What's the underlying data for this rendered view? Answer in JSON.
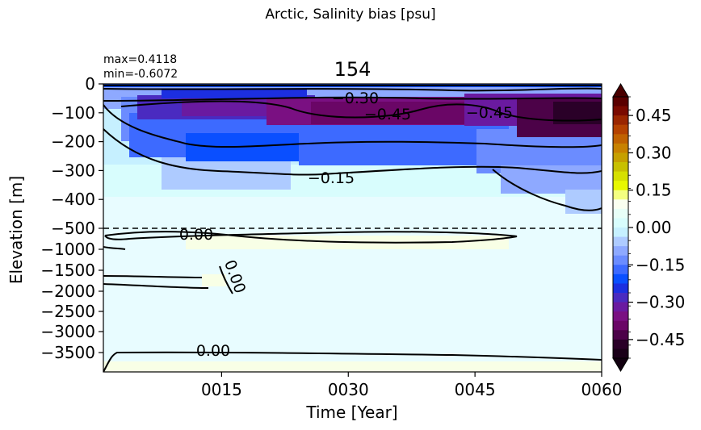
{
  "figure": {
    "suptitle": "Arctic, Salinity bias [psu]",
    "panel_title": "154",
    "stat_max": "max=0.4118",
    "stat_min": "min=-0.6072"
  },
  "chart_data": {
    "type": "heatmap",
    "title": "154",
    "xlabel": "Time [Year]",
    "ylabel": "Elevation [m]",
    "x_range": [
      1,
      60
    ],
    "x_ticks": [
      "0015",
      "0030",
      "0045",
      "0060"
    ],
    "x_tick_values": [
      15,
      30,
      45,
      60
    ],
    "y_ticks_upper": [
      "0",
      "−100",
      "−200",
      "−300",
      "−400",
      "−500"
    ],
    "y_ticks_lower": [
      "−1000",
      "−1500",
      "−2000",
      "−2500",
      "−3000",
      "−3500"
    ],
    "y_split_depth": -500,
    "colorbar": {
      "ticks": [
        "0.45",
        "0.30",
        "0.15",
        "0.00",
        "−0.15",
        "−0.30",
        "−0.45"
      ],
      "range": [
        -0.525,
        0.525
      ],
      "extend": "both",
      "colors": [
        "#e8fcff",
        "#d8fdfd",
        "#c6f0ff",
        "#aecbff",
        "#8ea9ff",
        "#6b8cff",
        "#3d6aff",
        "#0a4fff",
        "#1c2fe0",
        "#4a2ac0",
        "#6a1aa0",
        "#7a1082",
        "#6a0666",
        "#4c0248",
        "#2a0028"
      ]
    },
    "contour_levels": [
      "0.00",
      "−0.15",
      "−0.30",
      "−0.45",
      "−0.45",
      "−0.45",
      "−0.30",
      "0.00",
      "0.00",
      "0.00"
    ]
  }
}
